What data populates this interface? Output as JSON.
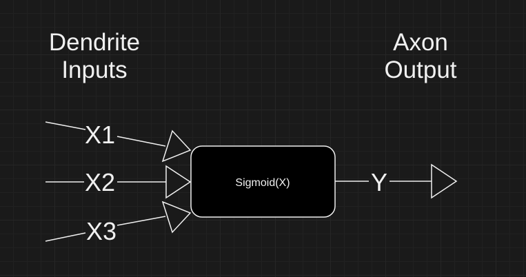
{
  "headings": {
    "inputs_line1": "Dendrite",
    "inputs_line2": "Inputs",
    "output_line1": "Axon",
    "output_line2": "Output"
  },
  "inputs": [
    {
      "label": "X1"
    },
    {
      "label": "X2"
    },
    {
      "label": "X3"
    }
  ],
  "neuron": {
    "label": "Sigmoid(X)"
  },
  "output": {
    "label": "Y"
  },
  "colors": {
    "background": "#1a1a1a",
    "stroke": "#f0f0f0",
    "box_fill": "#000000"
  }
}
